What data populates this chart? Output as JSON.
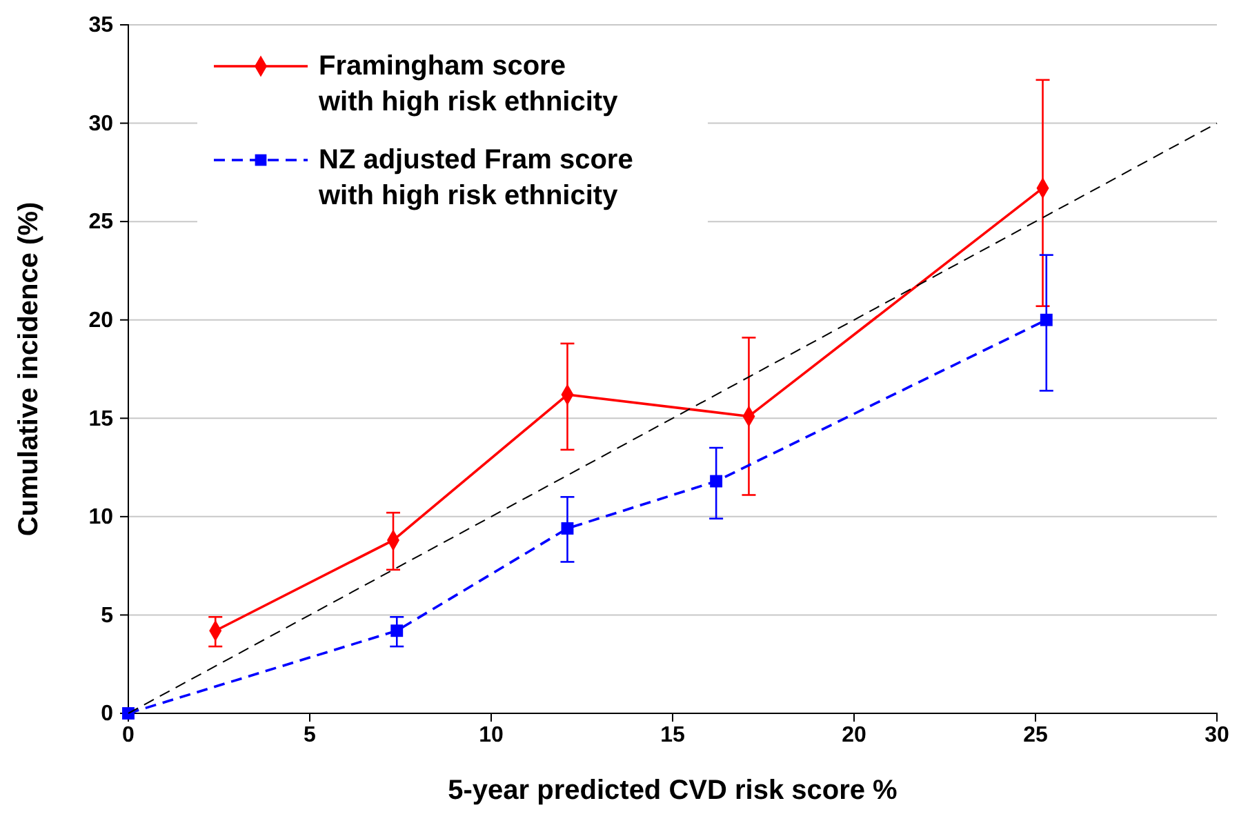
{
  "chart_data": {
    "type": "line",
    "xlabel": "5-year predicted CVD risk score %",
    "ylabel": "Cumulative incidence (%)",
    "xlim": [
      0,
      30
    ],
    "xticks": [
      0,
      5,
      10,
      15,
      20,
      25,
      30
    ],
    "ylim": [
      0,
      35
    ],
    "yticks": [
      0,
      5,
      10,
      15,
      20,
      25,
      30,
      35
    ],
    "grid": "y",
    "legend": "top left",
    "series": [
      {
        "name": "Framingham score with high risk ethnicity",
        "color": "#ff0000",
        "marker": "diamond",
        "line_style": "solid",
        "x": [
          2.4,
          7.3,
          12.1,
          17.1,
          25.2
        ],
        "values": [
          4.2,
          8.8,
          16.2,
          15.1,
          26.7
        ],
        "errors": [
          [
            3.4,
            4.9
          ],
          [
            7.3,
            10.2
          ],
          [
            13.4,
            18.8
          ],
          [
            11.1,
            19.1
          ],
          [
            20.7,
            32.2
          ]
        ]
      },
      {
        "name": "NZ adjusted Fram score with high risk ethnicity",
        "color": "#0000ff",
        "marker": "square",
        "line_style": "dashed",
        "x": [
          0,
          7.4,
          12.1,
          16.2,
          25.3
        ],
        "values": [
          0,
          4.2,
          9.4,
          11.8,
          20.0
        ],
        "errors": [
          null,
          [
            3.4,
            4.9
          ],
          [
            7.7,
            11.0
          ],
          [
            9.9,
            13.5
          ],
          [
            16.4,
            23.3
          ]
        ]
      },
      {
        "color": "#000000",
        "marker": "none",
        "line_style": "dashed",
        "x": [
          0,
          30
        ],
        "values": [
          0,
          30
        ]
      }
    ]
  }
}
